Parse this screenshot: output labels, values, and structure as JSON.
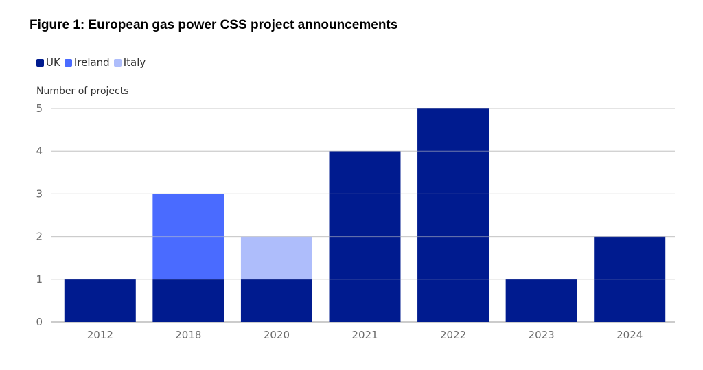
{
  "title": "Figure 1: European gas power CSS project announcements",
  "chart_data": {
    "type": "bar",
    "stacked": true,
    "title": "Figure 1: European gas power CSS project announcements",
    "xlabel": "",
    "ylabel": "Number of projects",
    "categories": [
      "2012",
      "2018",
      "2020",
      "2021",
      "2022",
      "2023",
      "2024"
    ],
    "series": [
      {
        "name": "UK",
        "color": "#001b8f",
        "values": [
          1,
          1,
          1,
          4,
          5,
          1,
          2
        ]
      },
      {
        "name": "Ireland",
        "color": "#4a6bff",
        "values": [
          0,
          2,
          0,
          0,
          0,
          0,
          0
        ]
      },
      {
        "name": "Italy",
        "color": "#aebdfb",
        "values": [
          0,
          0,
          1,
          0,
          0,
          0,
          0
        ]
      }
    ],
    "ylim": [
      0,
      5
    ],
    "yticks": [
      "0",
      "1",
      "2",
      "3",
      "4",
      "5"
    ],
    "grid": true,
    "legend": "top-left"
  }
}
